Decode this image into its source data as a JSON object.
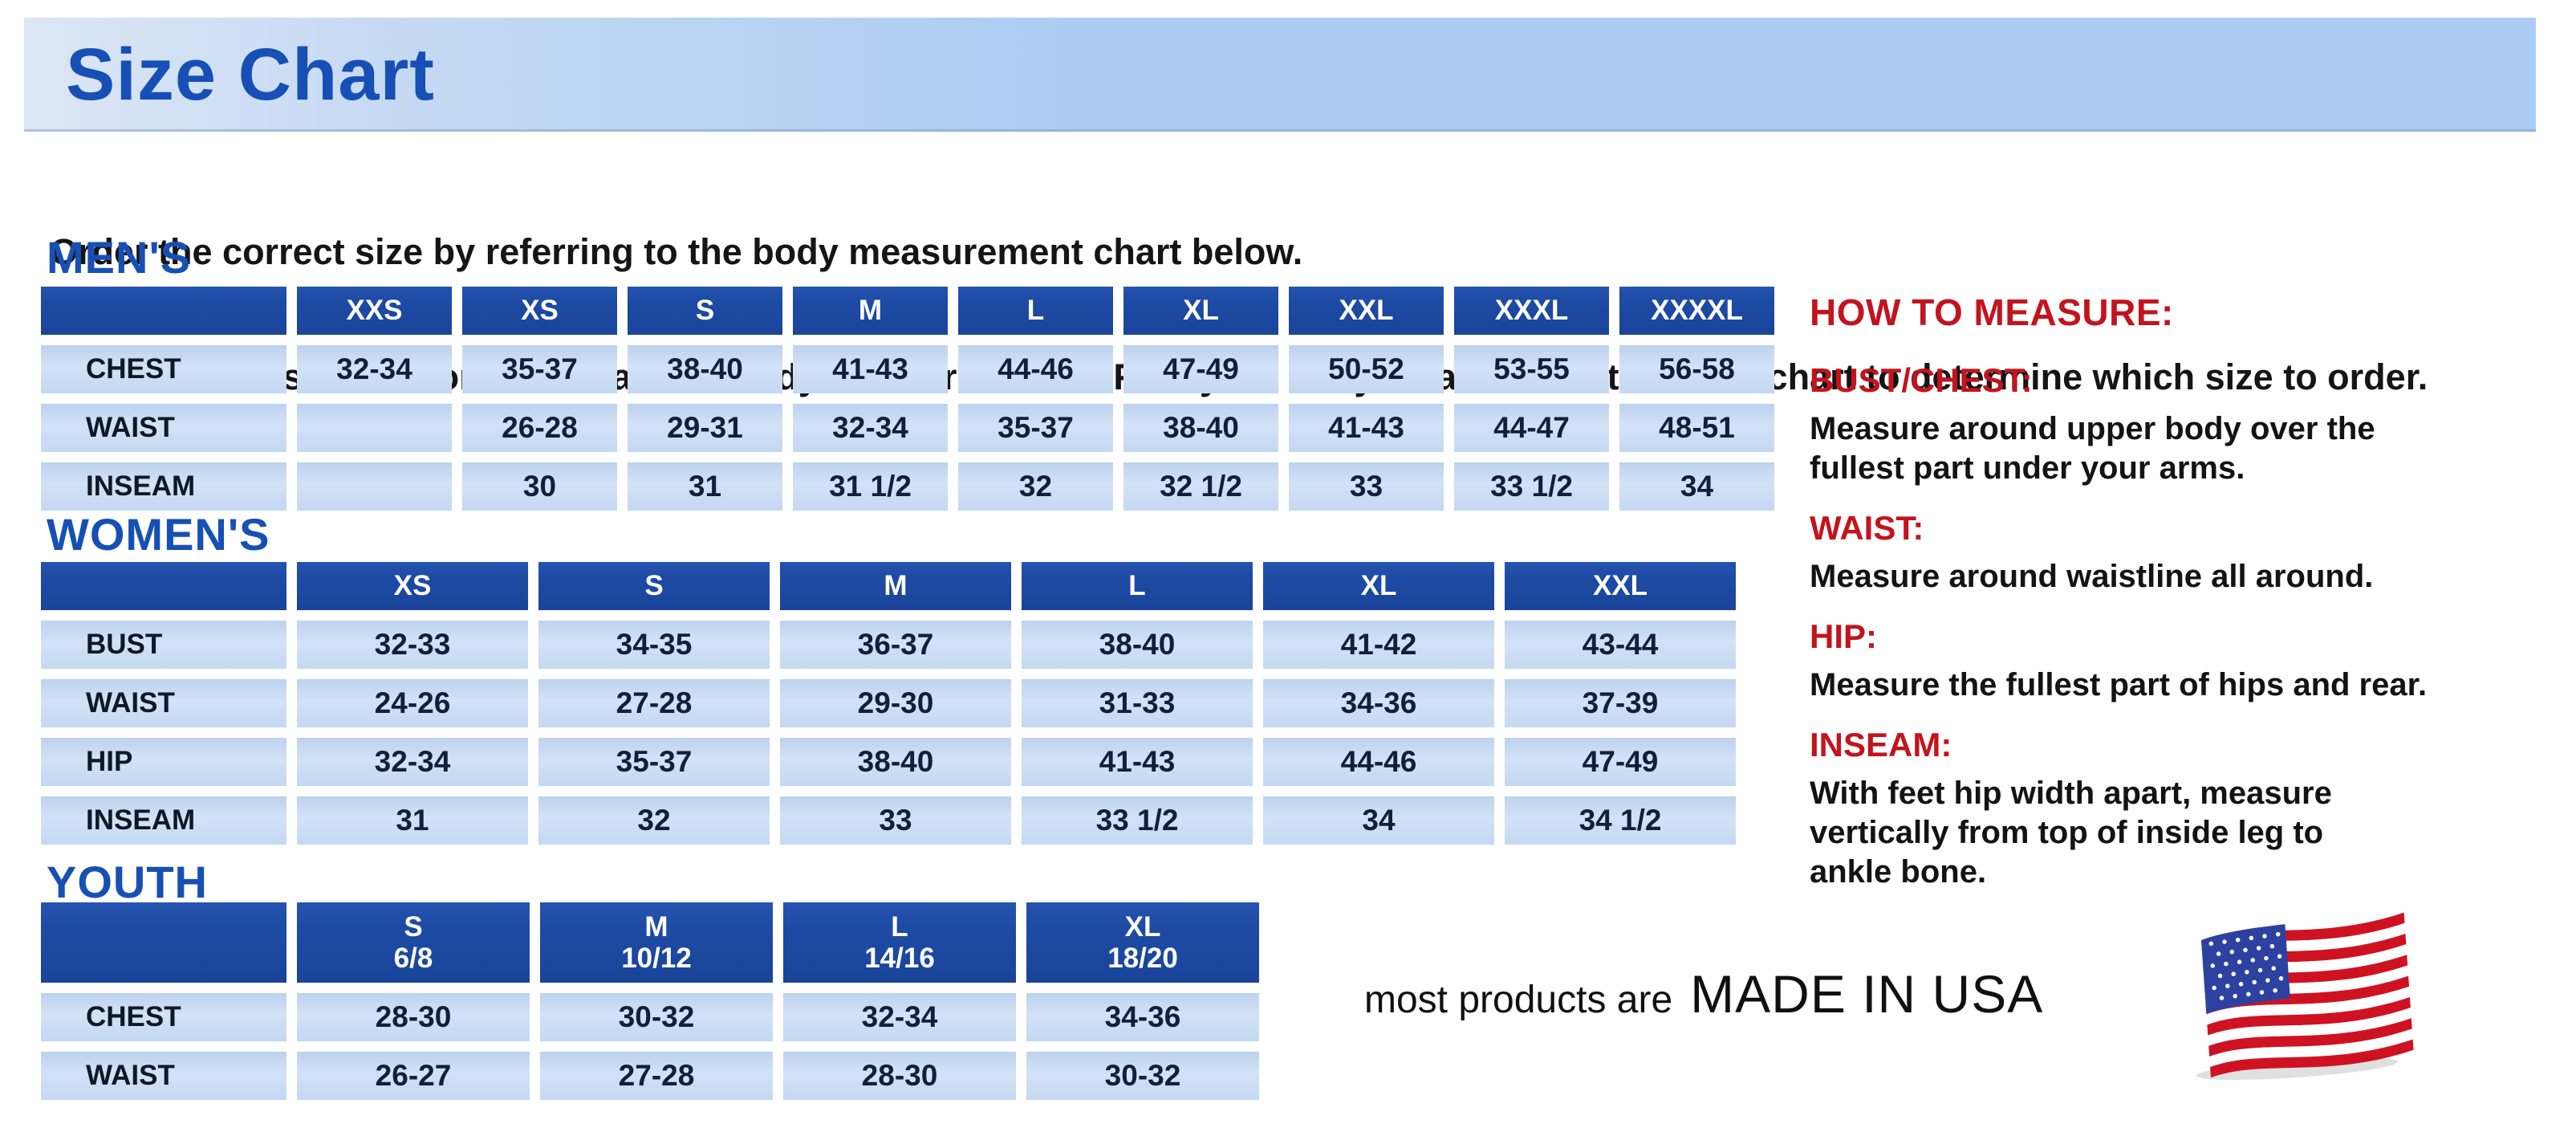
{
  "banner": {
    "title": "Size Chart"
  },
  "intro": {
    "line1": "Order the correct size by referring to the body measurement chart below.",
    "line2": "Measurements shown on size chart are body measurements.  Find your body measurements on the chart to determine which size to order."
  },
  "tables": [
    {
      "heading": "MEN'S",
      "col_headers": [
        "",
        "XXS",
        "XS",
        "S",
        "M",
        "L",
        "XL",
        "XXL",
        "XXXL",
        "XXXXL"
      ],
      "rows": [
        {
          "label": "CHEST",
          "values": [
            "32-34",
            "35-37",
            "38-40",
            "41-43",
            "44-46",
            "47-49",
            "50-52",
            "53-55",
            "56-58"
          ]
        },
        {
          "label": "WAIST",
          "values": [
            "",
            "26-28",
            "29-31",
            "32-34",
            "35-37",
            "38-40",
            "41-43",
            "44-47",
            "48-51"
          ]
        },
        {
          "label": "INSEAM",
          "values": [
            "",
            "30",
            "31",
            "31 1/2",
            "32",
            "32 1/2",
            "33",
            "33 1/2",
            "34"
          ]
        }
      ]
    },
    {
      "heading": "WOMEN'S",
      "col_headers": [
        "",
        "XS",
        "S",
        "M",
        "L",
        "XL",
        "XXL"
      ],
      "rows": [
        {
          "label": "BUST",
          "values": [
            "32-33",
            "34-35",
            "36-37",
            "38-40",
            "41-42",
            "43-44"
          ]
        },
        {
          "label": "WAIST",
          "values": [
            "24-26",
            "27-28",
            "29-30",
            "31-33",
            "34-36",
            "37-39"
          ]
        },
        {
          "label": "HIP",
          "values": [
            "32-34",
            "35-37",
            "38-40",
            "41-43",
            "44-46",
            "47-49"
          ]
        },
        {
          "label": "INSEAM",
          "values": [
            "31",
            "32",
            "33",
            "33 1/2",
            "34",
            "34 1/2"
          ]
        }
      ]
    },
    {
      "heading": "YOUTH",
      "col_headers": [
        "",
        "S\n6/8",
        "M\n10/12",
        "L\n14/16",
        "XL\n18/20"
      ],
      "rows": [
        {
          "label": "CHEST",
          "values": [
            "28-30",
            "30-32",
            "32-34",
            "34-36"
          ]
        },
        {
          "label": "WAIST",
          "values": [
            "26-27",
            "27-28",
            "28-30",
            "30-32"
          ]
        }
      ]
    }
  ],
  "how_to_measure": {
    "heading": "HOW TO MEASURE:",
    "items": [
      {
        "label": "BUST/CHEST:",
        "text": "Measure around upper body over the\nfullest part under your arms."
      },
      {
        "label": "WAIST:",
        "text": "Measure around waistline all around."
      },
      {
        "label": "HIP:",
        "text": "Measure the fullest part of hips and rear."
      },
      {
        "label": "INSEAM:",
        "text": "With feet hip width apart, measure\nvertically from top of inside leg to\nankle bone."
      }
    ]
  },
  "footer": {
    "prefix": "most products are",
    "emphasis": "MADE IN USA",
    "flag_icon": "us-flag"
  },
  "colors": {
    "flag_red": "#cf1222",
    "flag_blue": "#2c41a0"
  }
}
